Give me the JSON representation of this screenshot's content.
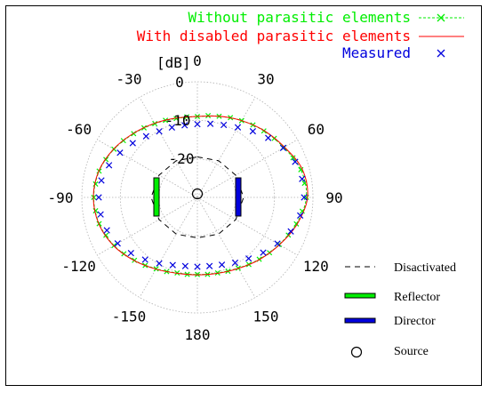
{
  "chart_data": {
    "type": "polar",
    "angular_unit": "degrees",
    "r_ticks": [
      0,
      -10,
      -20
    ],
    "r_tick_label_unit": "[dB]",
    "r_range": [
      -30,
      0
    ],
    "angle_tick_labels": [
      {
        "angle": 0,
        "label": "0"
      },
      {
        "angle": 30,
        "label": "30"
      },
      {
        "angle": 60,
        "label": "60"
      },
      {
        "angle": 90,
        "label": "90"
      },
      {
        "angle": 120,
        "label": "120"
      },
      {
        "angle": 150,
        "label": "150"
      },
      {
        "angle": 180,
        "label": "180"
      },
      {
        "angle": -150,
        "label": "-150"
      },
      {
        "angle": -120,
        "label": "-120"
      },
      {
        "angle": -90,
        "label": "-90"
      },
      {
        "angle": -60,
        "label": "-60"
      },
      {
        "angle": -30,
        "label": "-30"
      }
    ],
    "grid": true,
    "legend_placement": "top-right",
    "series": [
      {
        "name": "Without parasitic elements",
        "color": "#00ee00",
        "style": "dashed-line-with-x-markers",
        "angles": [
          0,
          15,
          30,
          45,
          60,
          75,
          90,
          105,
          120,
          135,
          150,
          165,
          180,
          -165,
          -150,
          -135,
          -120,
          -105,
          -90,
          -75,
          -60,
          -45,
          -30,
          -15
        ],
        "values": [
          -9,
          -8.2,
          -7.0,
          -5.6,
          -4.1,
          -2.2,
          -1.7,
          -3.4,
          -5.5,
          -7.3,
          -8.8,
          -9.7,
          -10,
          -9.7,
          -8.6,
          -6.9,
          -5.0,
          -3.6,
          -3.1,
          -3.6,
          -5.0,
          -6.6,
          -7.9,
          -8.8
        ]
      },
      {
        "name": "With disabled parasitic elements",
        "color": "#ff0000",
        "style": "solid-line",
        "angles": [
          0,
          15,
          30,
          45,
          60,
          75,
          90,
          105,
          120,
          135,
          150,
          165,
          180,
          -165,
          -150,
          -135,
          -120,
          -105,
          -90,
          -75,
          -60,
          -45,
          -30,
          -15
        ],
        "values": [
          -9,
          -8.2,
          -7.0,
          -5.5,
          -3.9,
          -1.8,
          -1.4,
          -3.2,
          -5.4,
          -7.2,
          -8.7,
          -9.6,
          -9.9,
          -9.6,
          -8.5,
          -6.8,
          -4.9,
          -3.5,
          -3.0,
          -3.5,
          -4.9,
          -6.5,
          -7.8,
          -8.7
        ]
      },
      {
        "name": "Measured",
        "color": "#0000dd",
        "style": "x-markers",
        "angles": [
          0,
          10,
          20,
          30,
          40,
          50,
          60,
          70,
          80,
          90,
          100,
          110,
          120,
          130,
          140,
          150,
          160,
          170,
          180,
          -170,
          -160,
          -150,
          -140,
          -130,
          -120,
          -110,
          -100,
          -90,
          -80,
          -70,
          -60,
          -50,
          -40,
          -30,
          -20,
          -10
        ],
        "values": [
          -11,
          -10.6,
          -10.0,
          -9.0,
          -7.6,
          -6.0,
          -4.3,
          -3.0,
          -2.4,
          -2.3,
          -2.9,
          -4.2,
          -6.0,
          -7.7,
          -9.3,
          -10.4,
          -11.4,
          -11.9,
          -12,
          -11.9,
          -11.3,
          -10.2,
          -8.9,
          -7.5,
          -6.1,
          -5.0,
          -4.5,
          -4.4,
          -4.7,
          -5.6,
          -6.8,
          -8.1,
          -9.3,
          -10.2,
          -10.7,
          -11.0
        ]
      },
      {
        "name": "Disactivated",
        "color": "#000000",
        "style": "dashed-line",
        "angles": [
          0,
          30,
          60,
          90,
          120,
          150,
          180,
          -150,
          -120,
          -90,
          -60,
          -30
        ],
        "values": [
          -19.5,
          -19.0,
          -18.5,
          -18.0,
          -18.5,
          -19.0,
          -19.5,
          -19.0,
          -18.5,
          -18.0,
          -18.5,
          -19.0
        ]
      }
    ],
    "elements": [
      {
        "name": "Reflector",
        "color": "#00ee00",
        "symbol": "vertical-bar",
        "position": "left"
      },
      {
        "name": "Director",
        "color": "#0000dd",
        "symbol": "vertical-bar",
        "position": "right"
      },
      {
        "name": "Source",
        "color": "#000000",
        "symbol": "circle",
        "position": "center"
      }
    ]
  },
  "legend_top": [
    {
      "label": "Without parasitic elements",
      "color": "#00ee00"
    },
    {
      "label": "With disabled parasitic elements",
      "color": "#ff0000"
    },
    {
      "label": "Measured",
      "color": "#0000dd"
    }
  ],
  "legend_bottom": [
    {
      "label": "Disactivated"
    },
    {
      "label": "Reflector",
      "color": "#00ee00"
    },
    {
      "label": "Director",
      "color": "#0000dd"
    },
    {
      "label": "Source"
    }
  ],
  "r_axis_label": "[dB]",
  "r_tick_labels": [
    "0",
    "-10",
    "-20"
  ]
}
